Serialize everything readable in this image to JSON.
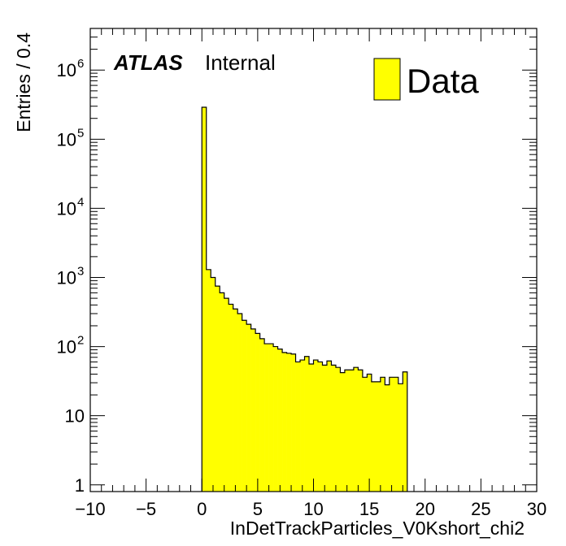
{
  "chart_data": {
    "type": "bar",
    "title": "",
    "xlabel": "InDetTrackParticles_V0Kshort_chi2",
    "ylabel": "Entries / 0.4",
    "xlim": [
      -10,
      30
    ],
    "ylim": [
      0.8,
      4000000
    ],
    "yscale": "log",
    "grid": false,
    "legend_position": "top-right",
    "x_ticks": [
      "−10",
      "−5",
      "0",
      "5",
      "10",
      "15",
      "20",
      "25",
      "30"
    ],
    "y_ticks": [
      {
        "base": "1",
        "exp": ""
      },
      {
        "base": "10",
        "exp": ""
      },
      {
        "base": "10",
        "exp": "2"
      },
      {
        "base": "10",
        "exp": "3"
      },
      {
        "base": "10",
        "exp": "4"
      },
      {
        "base": "10",
        "exp": "5"
      },
      {
        "base": "10",
        "exp": "6"
      }
    ],
    "bin_width": 0.4,
    "series": [
      {
        "name": "Data",
        "color": "#ffff00",
        "x": [
          0.0,
          0.4,
          0.8,
          1.2,
          1.6,
          2.0,
          2.4,
          2.8,
          3.2,
          3.6,
          4.0,
          4.4,
          4.8,
          5.2,
          5.6,
          6.0,
          6.4,
          6.8,
          7.2,
          7.6,
          8.0,
          8.4,
          8.8,
          9.2,
          9.6,
          10.0,
          10.4,
          10.8,
          11.2,
          11.6,
          12.0,
          12.4,
          12.8,
          13.2,
          13.6,
          14.0,
          14.4,
          14.8,
          15.2,
          15.6,
          16.0,
          16.4,
          16.8,
          17.2,
          17.6,
          18.0
        ],
        "values": [
          290000,
          1300,
          1000,
          750,
          600,
          500,
          410,
          350,
          300,
          240,
          210,
          180,
          155,
          130,
          110,
          110,
          100,
          92,
          82,
          80,
          78,
          60,
          64,
          72,
          56,
          64,
          60,
          54,
          62,
          54,
          50,
          42,
          46,
          46,
          50,
          46,
          36,
          40,
          31,
          31,
          36,
          28,
          36,
          36,
          29,
          43
        ]
      }
    ]
  },
  "atlas_label": {
    "bold": "ATLAS",
    "text": "Internal"
  },
  "legend": {
    "label": "Data",
    "color": "#ffff00"
  }
}
